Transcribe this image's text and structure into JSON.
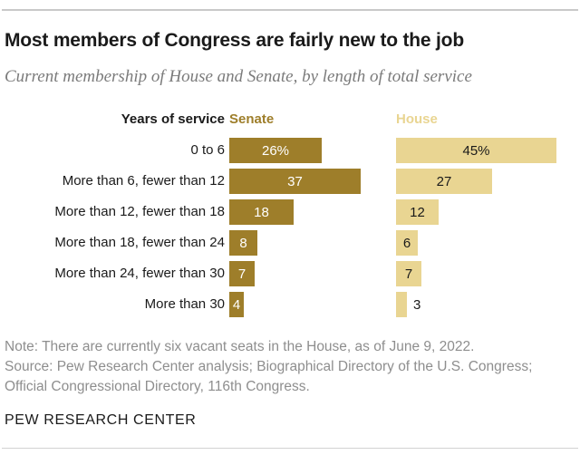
{
  "page": {
    "title": "Most members of Congress are fairly new to the job",
    "subtitle": "Current membership of House and Senate, by length of total service",
    "note_lines": [
      "Note: There are currently six vacant seats in the House, as of June 9, 2022.",
      "Source: Pew Research Center analysis; Biographical Directory of the U.S. Congress;",
      "Official Congressional Directory, 116th Congress."
    ],
    "brand": "PEW RESEARCH CENTER"
  },
  "chart_data": {
    "type": "bar",
    "orientation": "horizontal",
    "row_header": "Years of service",
    "categories": [
      "0 to 6",
      "More than 6, fewer than 12",
      "More than 12, fewer than 18",
      "More than 18, fewer than 24",
      "More than 24, fewer than 30",
      "More than 30"
    ],
    "series": [
      {
        "name": "Senate",
        "values": [
          26,
          37,
          18,
          8,
          7,
          4
        ],
        "labels": [
          "26%",
          "37",
          "18",
          "8",
          "7",
          "4"
        ],
        "color": "#9e7e2a",
        "label_color": "#ffffff"
      },
      {
        "name": "House",
        "values": [
          45,
          27,
          12,
          6,
          7,
          3
        ],
        "labels": [
          "45%",
          "27",
          "12",
          "6",
          "7",
          "3"
        ],
        "color": "#e9d592",
        "label_color": "#1a1a1a"
      }
    ],
    "xlim": [
      0,
      47
    ],
    "grid": false,
    "legend_position": "column-headers"
  }
}
